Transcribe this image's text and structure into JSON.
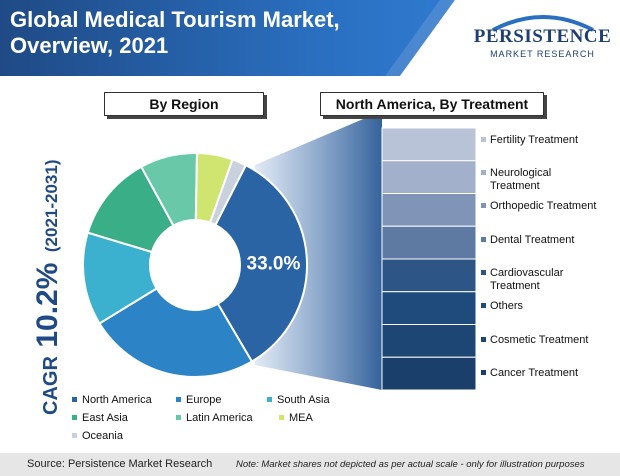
{
  "header": {
    "title_line1": "Global Medical Tourism Market,",
    "title_line2": "Overview, 2021",
    "logo_main": "PERSISTENCE",
    "logo_sub": "MARKET RESEARCH"
  },
  "cagr": {
    "prefix": "CAGR",
    "value": "10.2%",
    "period": "(2021-2031)"
  },
  "panels": {
    "region_title": "By Region",
    "treatment_title": "North America, By Treatment"
  },
  "chart_data": [
    {
      "type": "pie",
      "title": "By Region",
      "donut": true,
      "slices": [
        {
          "label": "North America",
          "value": 33.0,
          "color": "#2b64a5",
          "shown_label": "33.0%"
        },
        {
          "label": "Europe",
          "value": 24.0,
          "color": "#2c84c6"
        },
        {
          "label": "South Asia",
          "value": 13.0,
          "color": "#3bb1cf"
        },
        {
          "label": "East Asia",
          "value": 12.0,
          "color": "#3aae86"
        },
        {
          "label": "Latin America",
          "value": 8.0,
          "color": "#68c8a8"
        },
        {
          "label": "MEA",
          "value": 5.0,
          "color": "#cfe56f"
        },
        {
          "label": "Oceania",
          "value": 2.0,
          "color": "#c9d0de"
        }
      ]
    },
    {
      "type": "bar",
      "title": "North America, By Treatment",
      "stacked": true,
      "orientation": "vertical",
      "categories": [
        "Fertility Treatment",
        "Neurological Treatment",
        "Orthopedic Treatment",
        "Dental Treatment",
        "Cardiovascular Treatment",
        "Others",
        "Cosmetic Treatment",
        "Cancer Treatment"
      ],
      "colors": [
        "#b9c3d8",
        "#a2b0cc",
        "#7f94b6",
        "#5e7aa3",
        "#2d5687",
        "#1e4b7c",
        "#1d4675",
        "#1a3f6a"
      ],
      "note": "Market shares not depicted as per actual scale"
    }
  ],
  "legend": [
    {
      "label": "North America",
      "color": "#2b64a5"
    },
    {
      "label": "Europe",
      "color": "#2c84c6"
    },
    {
      "label": "South Asia",
      "color": "#3bb1cf"
    },
    {
      "label": "East Asia",
      "color": "#3aae86"
    },
    {
      "label": "Latin America",
      "color": "#68c8a8"
    },
    {
      "label": "MEA",
      "color": "#cfe56f"
    },
    {
      "label": "Oceania",
      "color": "#c9d0de"
    }
  ],
  "treatments": [
    {
      "label_line1": "Fertility Treatment",
      "label_line2": ""
    },
    {
      "label_line1": "Neurological",
      "label_line2": "Treatment"
    },
    {
      "label_line1": "Orthopedic Treatment",
      "label_line2": ""
    },
    {
      "label_line1": "Dental Treatment",
      "label_line2": ""
    },
    {
      "label_line1": "Cardiovascular",
      "label_line2": "Treatment"
    },
    {
      "label_line1": "Others",
      "label_line2": ""
    },
    {
      "label_line1": "Cosmetic Treatment",
      "label_line2": ""
    },
    {
      "label_line1": "Cancer Treatment",
      "label_line2": ""
    }
  ],
  "footer": {
    "source": "Source: Persistence Market Research",
    "note": "Note: Market shares not depicted as per actual scale - only for illustration purposes"
  },
  "colors": {
    "header_blue": "#1f4a85",
    "header_accent": "#2a6fc0",
    "beam": "#3a6fb0"
  }
}
